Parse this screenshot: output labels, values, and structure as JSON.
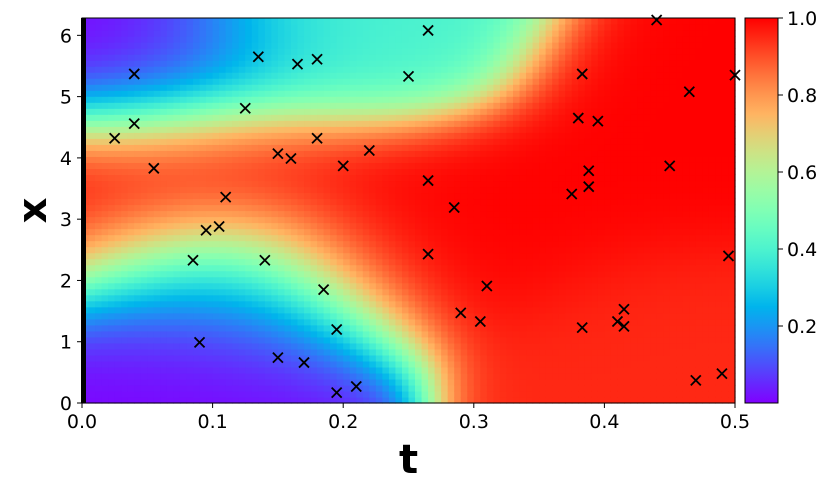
{
  "chart_data": {
    "type": "heatmap",
    "xlabel": "t",
    "ylabel": "x",
    "xlim": [
      0.0,
      0.5
    ],
    "ylim": [
      0.0,
      6.283
    ],
    "colormap": "rainbow",
    "colorbar": {
      "range": [
        0.0,
        1.0
      ],
      "ticks": [
        "0.2",
        "0.4",
        "0.6",
        "0.8",
        "1.0"
      ],
      "tick_values": [
        0.2,
        0.4,
        0.6,
        0.8,
        1.0
      ]
    },
    "x_ticks": [
      "0.0",
      "0.1",
      "0.2",
      "0.3",
      "0.4",
      "0.5"
    ],
    "x_tick_values": [
      0.0,
      0.1,
      0.2,
      0.3,
      0.4,
      0.5
    ],
    "y_ticks": [
      "0",
      "1",
      "2",
      "3",
      "4",
      "5",
      "6"
    ],
    "y_tick_values": [
      0,
      1,
      2,
      3,
      4,
      5,
      6
    ],
    "initial_condition_line": {
      "t": 0.0,
      "color": "#000000"
    },
    "marker": "x",
    "marker_color": "#000000",
    "field_hotspots": [
      {
        "t": 0.0,
        "x": 3.1,
        "value": 1.0
      },
      {
        "t": 0.1,
        "x": 3.8,
        "value": 1.0
      },
      {
        "t": 0.22,
        "x": 3.0,
        "value": 1.0
      },
      {
        "t": 0.32,
        "x": 3.0,
        "value": 1.0
      },
      {
        "t": 0.45,
        "x": 3.5,
        "value": 1.0
      },
      {
        "t": 0.48,
        "x": 4.9,
        "value": 1.0
      },
      {
        "t": 0.46,
        "x": 1.6,
        "value": 0.95
      },
      {
        "t": 0.48,
        "x": 0.35,
        "value": 0.95
      },
      {
        "t": 0.05,
        "x": 5.5,
        "value": 0.0
      },
      {
        "t": 0.06,
        "x": 0.7,
        "value": 0.0
      },
      {
        "t": 0.2,
        "x": 5.9,
        "value": 0.4
      },
      {
        "t": 0.1,
        "x": 2.0,
        "value": 0.2
      }
    ],
    "points": [
      {
        "t": 0.025,
        "x": 4.32
      },
      {
        "t": 0.04,
        "x": 5.37
      },
      {
        "t": 0.04,
        "x": 4.56
      },
      {
        "t": 0.055,
        "x": 3.83
      },
      {
        "t": 0.085,
        "x": 2.33
      },
      {
        "t": 0.09,
        "x": 0.99
      },
      {
        "t": 0.095,
        "x": 2.82
      },
      {
        "t": 0.105,
        "x": 2.88
      },
      {
        "t": 0.11,
        "x": 3.36
      },
      {
        "t": 0.125,
        "x": 4.81
      },
      {
        "t": 0.135,
        "x": 5.65
      },
      {
        "t": 0.14,
        "x": 2.33
      },
      {
        "t": 0.15,
        "x": 4.07
      },
      {
        "t": 0.15,
        "x": 0.74
      },
      {
        "t": 0.16,
        "x": 3.99
      },
      {
        "t": 0.165,
        "x": 5.53
      },
      {
        "t": 0.17,
        "x": 0.66
      },
      {
        "t": 0.18,
        "x": 5.61
      },
      {
        "t": 0.18,
        "x": 4.32
      },
      {
        "t": 0.185,
        "x": 1.85
      },
      {
        "t": 0.195,
        "x": 1.2
      },
      {
        "t": 0.195,
        "x": 0.17
      },
      {
        "t": 0.2,
        "x": 3.87
      },
      {
        "t": 0.21,
        "x": 0.27
      },
      {
        "t": 0.22,
        "x": 4.12
      },
      {
        "t": 0.25,
        "x": 5.33
      },
      {
        "t": 0.265,
        "x": 6.08
      },
      {
        "t": 0.265,
        "x": 3.63
      },
      {
        "t": 0.265,
        "x": 2.43
      },
      {
        "t": 0.285,
        "x": 3.19
      },
      {
        "t": 0.29,
        "x": 1.47
      },
      {
        "t": 0.305,
        "x": 1.33
      },
      {
        "t": 0.31,
        "x": 1.91
      },
      {
        "t": 0.375,
        "x": 3.41
      },
      {
        "t": 0.38,
        "x": 4.65
      },
      {
        "t": 0.383,
        "x": 5.37
      },
      {
        "t": 0.383,
        "x": 1.23
      },
      {
        "t": 0.388,
        "x": 3.53
      },
      {
        "t": 0.388,
        "x": 3.79
      },
      {
        "t": 0.395,
        "x": 4.6
      },
      {
        "t": 0.41,
        "x": 1.33
      },
      {
        "t": 0.415,
        "x": 1.25
      },
      {
        "t": 0.415,
        "x": 1.53
      },
      {
        "t": 0.44,
        "x": 6.25
      },
      {
        "t": 0.45,
        "x": 3.87
      },
      {
        "t": 0.465,
        "x": 5.08
      },
      {
        "t": 0.47,
        "x": 0.37
      },
      {
        "t": 0.49,
        "x": 0.48
      },
      {
        "t": 0.495,
        "x": 2.4
      },
      {
        "t": 0.5,
        "x": 5.35
      }
    ]
  }
}
